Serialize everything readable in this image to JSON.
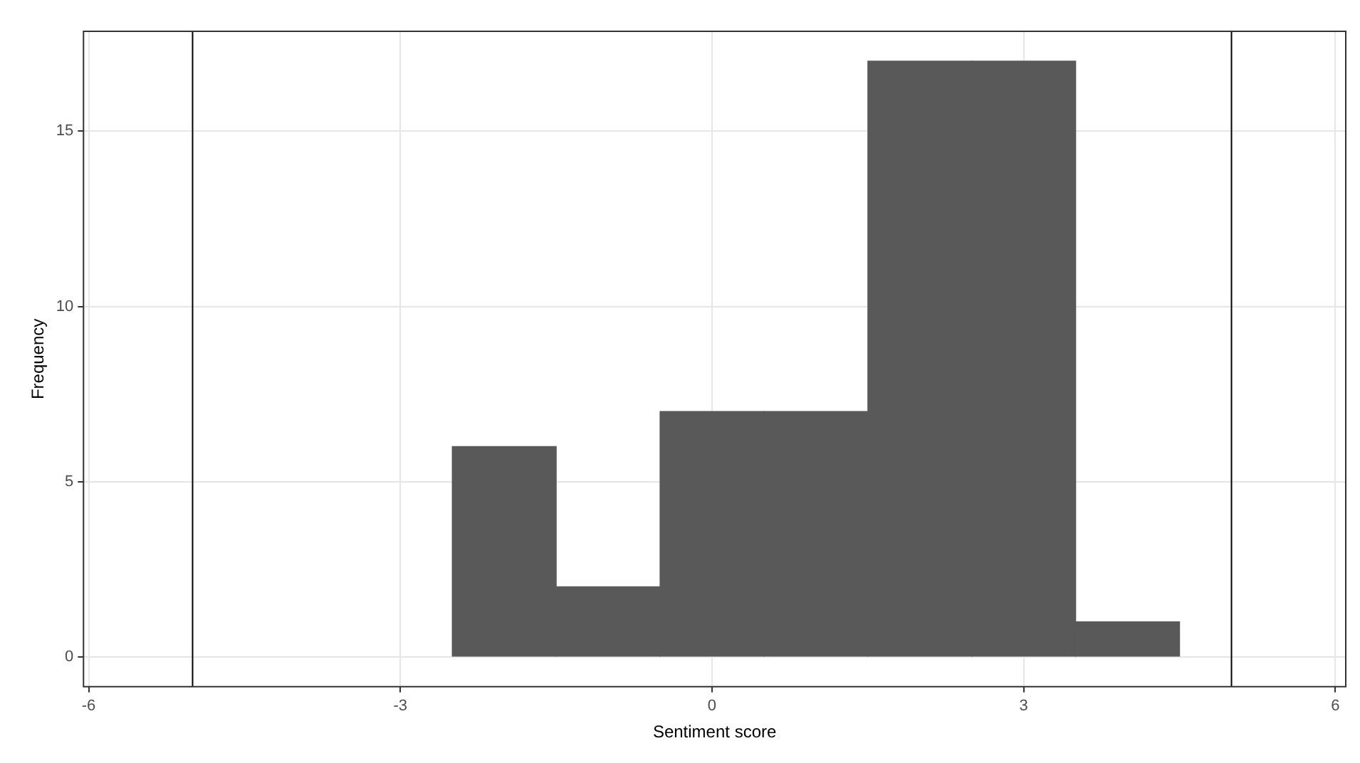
{
  "chart_data": {
    "type": "histogram",
    "xlabel": "Sentiment score",
    "ylabel": "Frequency",
    "bins": [
      -2.5,
      -1.5,
      -0.5,
      0.5,
      1.5,
      2.5,
      3.5,
      4.5
    ],
    "values": [
      6,
      2,
      7,
      7,
      17,
      17,
      1
    ],
    "color": "#595959",
    "xlim": [
      -6.05,
      6.1
    ],
    "xticks": [
      -6,
      -3,
      0,
      3,
      6
    ],
    "ylim": [
      -0.85,
      17.85
    ],
    "yticks": [
      0,
      5,
      10,
      15
    ],
    "ref_lines": [
      {
        "axis": "x",
        "value": -5,
        "color": "#000000"
      },
      {
        "axis": "x",
        "value": 5,
        "color": "#000000"
      }
    ],
    "grid": true
  }
}
